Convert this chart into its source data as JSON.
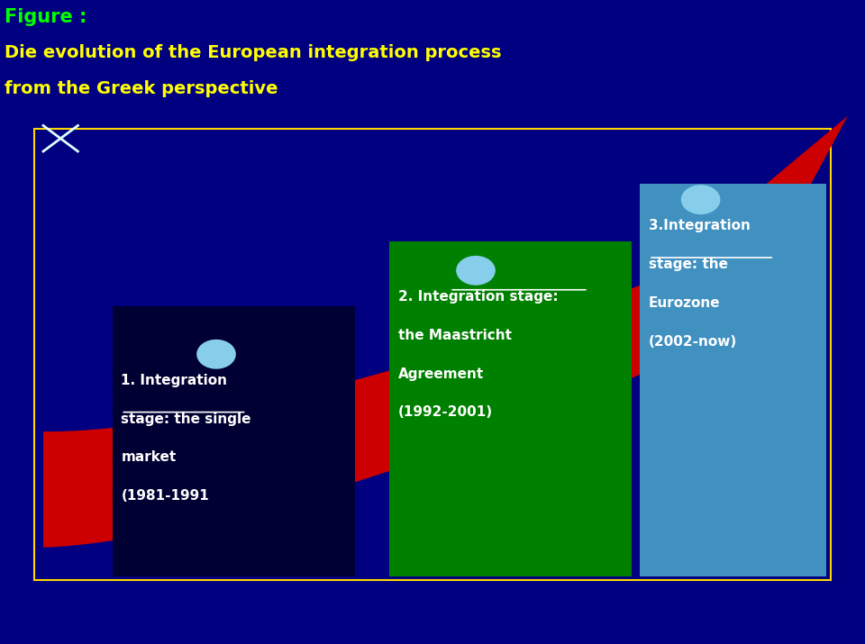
{
  "bg_color": "#000080",
  "figure_title": "Figure :",
  "figure_title_color": "#00FF00",
  "subtitle_line1": "Die evolution of the European integration process",
  "subtitle_line2": "from the Greek perspective",
  "subtitle_color": "#FFFF00",
  "box_border_color": "#FFD700",
  "box_bg_color": "#000080",
  "arrow_color": "#CC0000",
  "stage1": {
    "label_line1": "1. Integration",
    "label_line2": "stage: the single",
    "label_line3": "market",
    "label_line4": "(1981-1991",
    "box_color": "#000033",
    "dot_color": "#87CEEB",
    "underline_words": "stage:"
  },
  "stage2": {
    "label_line1": "2. Integration stage:",
    "label_line2": "the Maastricht",
    "label_line3": "Agreement",
    "label_line4": "(1992-2001)",
    "box_color": "#008000",
    "dot_color": "#87CEEB",
    "underline_words": "stage:"
  },
  "stage3": {
    "label_line1": "3.Integration",
    "label_line2": "stage: the",
    "label_line3": "Eurozone",
    "label_line4": "(2002-now)",
    "box_color": "#4090C0",
    "dot_color": "#87CEEB",
    "underline_words": "stage:"
  },
  "text_color": "#FFFFFF",
  "font_size": 11
}
